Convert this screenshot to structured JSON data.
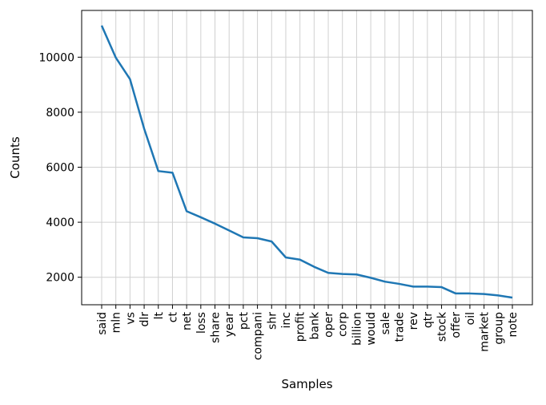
{
  "chart_data": {
    "type": "line",
    "title": "",
    "xlabel": "Samples",
    "ylabel": "Counts",
    "ylim": [
      1000,
      11700
    ],
    "yticks": [
      2000,
      4000,
      6000,
      8000,
      10000
    ],
    "ytick_labels": [
      "2000",
      "4000",
      "6000",
      "8000",
      "10000"
    ],
    "grid": true,
    "legend": "none",
    "line_color": "#1f77b4",
    "categories": [
      "said",
      "mln",
      "vs",
      "dlr",
      "lt",
      "ct",
      "net",
      "loss",
      "share",
      "year",
      "pct",
      "compani",
      "shr",
      "inc",
      "profit",
      "bank",
      "oper",
      "corp",
      "billion",
      "would",
      "sale",
      "trade",
      "rev",
      "qtr",
      "stock",
      "offer",
      "oil",
      "market",
      "group",
      "note"
    ],
    "series": [
      {
        "values": [
          11150,
          9980,
          9200,
          7400,
          5860,
          5800,
          4400,
          4180,
          3950,
          3700,
          3450,
          3420,
          3300,
          2720,
          2640,
          2380,
          2160,
          2120,
          2100,
          1980,
          1840,
          1760,
          1660,
          1660,
          1640,
          1410,
          1410,
          1390,
          1340,
          1260
        ]
      }
    ]
  }
}
